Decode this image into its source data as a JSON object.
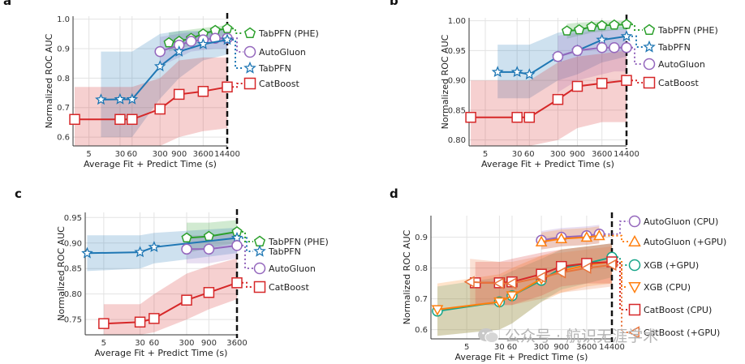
{
  "watermark": "公众号 · 航识无涯学术",
  "chart_data": [
    {
      "panel": "a",
      "type": "line",
      "ylabel": "Normalized ROC AUC",
      "xlabel": "Average Fit + Predict Time (s)",
      "x_ticks": [
        5,
        30,
        60,
        300,
        900,
        3600,
        14400
      ],
      "x_tick_labels": [
        "5",
        "30",
        "60",
        "300",
        "900",
        "3600",
        "14400"
      ],
      "xlim": [
        2,
        14400
      ],
      "ylim": [
        0.57,
        1.01
      ],
      "y_ticks": [
        0.6,
        0.7,
        0.8,
        0.9,
        1.0
      ],
      "y_tick_labels": [
        "0.6",
        "0.7",
        "0.8",
        "0.9",
        "1.0"
      ],
      "grid": true,
      "series": [
        {
          "name": "TabPFN (PHE)",
          "color": "#2ca02c",
          "marker": "pentagon",
          "x": [
            500,
            900,
            1800,
            3600,
            7200,
            14400
          ],
          "y": [
            0.92,
            0.925,
            0.935,
            0.95,
            0.962,
            0.968
          ],
          "lo": [
            0.89,
            0.9,
            0.91,
            0.925,
            0.94,
            0.945
          ],
          "hi": [
            0.955,
            0.96,
            0.965,
            0.97,
            0.975,
            0.98
          ]
        },
        {
          "name": "AutoGluon",
          "color": "#9467bd",
          "marker": "circle",
          "x": [
            300,
            900,
            1800,
            3600,
            7200,
            14400
          ],
          "y": [
            0.89,
            0.912,
            0.925,
            0.93,
            0.935,
            0.935
          ],
          "lo": [
            0.84,
            0.87,
            0.89,
            0.895,
            0.9,
            0.9
          ],
          "hi": [
            0.94,
            0.95,
            0.955,
            0.96,
            0.962,
            0.962
          ]
        },
        {
          "name": "TabPFN",
          "color": "#1f77b4",
          "marker": "star",
          "x": [
            10,
            30,
            60,
            300,
            900,
            3600,
            14400
          ],
          "y": [
            0.727,
            0.728,
            0.728,
            0.84,
            0.89,
            0.915,
            0.93
          ],
          "lo": [
            0.6,
            0.6,
            0.6,
            0.73,
            0.8,
            0.86,
            0.88
          ],
          "hi": [
            0.89,
            0.89,
            0.89,
            0.95,
            0.96,
            0.96,
            0.965
          ]
        },
        {
          "name": "CatBoost",
          "color": "#d62728",
          "marker": "square",
          "x": [
            2.2,
            30,
            60,
            300,
            900,
            3600,
            14400
          ],
          "y": [
            0.66,
            0.66,
            0.66,
            0.695,
            0.745,
            0.755,
            0.77
          ],
          "lo": [
            0.57,
            0.57,
            0.57,
            0.57,
            0.6,
            0.62,
            0.63
          ],
          "hi": [
            0.77,
            0.77,
            0.77,
            0.8,
            0.86,
            0.87,
            0.87
          ]
        }
      ]
    },
    {
      "panel": "b",
      "type": "line",
      "ylabel": "Normalized ROC AUC",
      "xlabel": "Average Fit + Predict Time (s)",
      "x_ticks": [
        5,
        30,
        60,
        300,
        900,
        3600,
        14400
      ],
      "x_tick_labels": [
        "5",
        "30",
        "60",
        "300",
        "900",
        "3600",
        "14400"
      ],
      "xlim": [
        2,
        14400
      ],
      "ylim": [
        0.79,
        1.005
      ],
      "y_ticks": [
        0.8,
        0.85,
        0.9,
        0.95,
        1.0
      ],
      "y_tick_labels": [
        "0.80",
        "0.85",
        "0.90",
        "0.95",
        "1.00"
      ],
      "grid": true,
      "series": [
        {
          "name": "TabPFN (PHE)",
          "color": "#2ca02c",
          "marker": "pentagon",
          "x": [
            500,
            1000,
            2000,
            3600,
            7200,
            14400
          ],
          "y": [
            0.983,
            0.985,
            0.99,
            0.992,
            0.993,
            0.994
          ],
          "lo": [
            0.97,
            0.975,
            0.98,
            0.982,
            0.984,
            0.985
          ],
          "hi": [
            0.995,
            0.997,
            0.998,
            0.999,
            0.999,
            1.0
          ]
        },
        {
          "name": "TabPFN",
          "color": "#1f77b4",
          "marker": "star",
          "x": [
            10,
            30,
            60,
            300,
            900,
            3600,
            14400
          ],
          "y": [
            0.914,
            0.914,
            0.91,
            0.94,
            0.95,
            0.968,
            0.974
          ],
          "lo": [
            0.87,
            0.87,
            0.87,
            0.9,
            0.91,
            0.93,
            0.94
          ],
          "hi": [
            0.96,
            0.96,
            0.96,
            0.98,
            0.985,
            0.99,
            0.99
          ]
        },
        {
          "name": "AutoGluon",
          "color": "#9467bd",
          "marker": "circle",
          "x": [
            300,
            900,
            3600,
            7200,
            14400
          ],
          "y": [
            0.94,
            0.95,
            0.955,
            0.955,
            0.955
          ],
          "lo": [
            0.88,
            0.9,
            0.91,
            0.915,
            0.915
          ],
          "hi": [
            0.975,
            0.98,
            0.985,
            0.985,
            0.985
          ]
        },
        {
          "name": "CatBoost",
          "color": "#d62728",
          "marker": "square",
          "x": [
            2.2,
            30,
            60,
            300,
            900,
            3600,
            14400
          ],
          "y": [
            0.838,
            0.838,
            0.838,
            0.868,
            0.89,
            0.895,
            0.9
          ],
          "lo": [
            0.79,
            0.79,
            0.79,
            0.8,
            0.82,
            0.83,
            0.83
          ],
          "hi": [
            0.9,
            0.9,
            0.9,
            0.93,
            0.94,
            0.945,
            0.95
          ]
        }
      ]
    },
    {
      "panel": "c",
      "type": "line",
      "ylabel": "Normalized ROC AUC",
      "xlabel": "Average Fit + Predict Time (s)",
      "x_ticks": [
        5,
        30,
        60,
        300,
        900,
        3600
      ],
      "x_tick_labels": [
        "5",
        "30",
        "60",
        "300",
        "900",
        "3600"
      ],
      "xlim": [
        2,
        3600
      ],
      "ylim": [
        0.72,
        0.96
      ],
      "y_ticks": [
        0.75,
        0.8,
        0.85,
        0.9,
        0.95
      ],
      "y_tick_labels": [
        "0.75",
        "0.80",
        "0.85",
        "0.90",
        "0.95"
      ],
      "grid": true,
      "series": [
        {
          "name": "TabPFN (PHE)",
          "color": "#2ca02c",
          "marker": "pentagon",
          "x": [
            300,
            900,
            3600
          ],
          "y": [
            0.91,
            0.913,
            0.922
          ],
          "lo": [
            0.88,
            0.89,
            0.9
          ],
          "hi": [
            0.94,
            0.94,
            0.945
          ]
        },
        {
          "name": "TabPFN",
          "color": "#1f77b4",
          "marker": "star",
          "x": [
            2.2,
            30,
            60,
            3600
          ],
          "y": [
            0.88,
            0.882,
            0.892,
            0.91
          ],
          "lo": [
            0.845,
            0.85,
            0.86,
            0.88
          ],
          "hi": [
            0.915,
            0.915,
            0.92,
            0.93
          ]
        },
        {
          "name": "AutoGluon",
          "color": "#9467bd",
          "marker": "circle",
          "x": [
            300,
            900,
            3600
          ],
          "y": [
            0.888,
            0.888,
            0.895
          ],
          "lo": [
            0.86,
            0.86,
            0.87
          ],
          "hi": [
            0.915,
            0.915,
            0.92
          ]
        },
        {
          "name": "CatBoost",
          "color": "#d62728",
          "marker": "square",
          "x": [
            5,
            30,
            60,
            300,
            900,
            3600
          ],
          "y": [
            0.742,
            0.745,
            0.752,
            0.788,
            0.803,
            0.822
          ],
          "lo": [
            0.72,
            0.72,
            0.725,
            0.75,
            0.77,
            0.79
          ],
          "hi": [
            0.78,
            0.78,
            0.8,
            0.84,
            0.855,
            0.87
          ]
        }
      ]
    },
    {
      "panel": "d",
      "type": "line",
      "ylabel": "Normalized ROC AUC",
      "xlabel": "Average Fit + Predict Time (s)",
      "x_ticks": [
        5,
        30,
        60,
        300,
        900,
        3600,
        14400
      ],
      "x_tick_labels": [
        "5",
        "30",
        "60",
        "300",
        "900",
        "3600",
        "14400"
      ],
      "xlim": [
        0.7,
        14400
      ],
      "ylim": [
        0.57,
        0.97
      ],
      "y_ticks": [
        0.6,
        0.7,
        0.8,
        0.9
      ],
      "y_tick_labels": [
        "0.6",
        "0.7",
        "0.8",
        "0.9"
      ],
      "grid": true,
      "series": [
        {
          "name": "AutoGluon (CPU)",
          "color": "#9467bd",
          "marker": "circle",
          "x": [
            300,
            900,
            3600,
            7200
          ],
          "y": [
            0.89,
            0.9,
            0.905,
            0.91
          ],
          "lo": [
            0.86,
            0.87,
            0.875,
            0.88
          ],
          "hi": [
            0.92,
            0.93,
            0.935,
            0.94
          ]
        },
        {
          "name": "AutoGluon (+GPU)",
          "color": "#ff7f0e",
          "marker": "triangle-up",
          "x": [
            300,
            900,
            3600,
            7200
          ],
          "y": [
            0.885,
            0.895,
            0.9,
            0.905
          ],
          "lo": [
            0.86,
            0.87,
            0.875,
            0.88
          ],
          "hi": [
            0.915,
            0.925,
            0.93,
            0.935
          ]
        },
        {
          "name": "XGB (+GPU)",
          "color": "#17a589",
          "marker": "circle",
          "x": [
            1,
            30,
            60,
            300,
            900,
            3600,
            14400
          ],
          "y": [
            0.66,
            0.69,
            0.71,
            0.76,
            0.8,
            0.815,
            0.835
          ],
          "lo": [
            0.58,
            0.6,
            0.62,
            0.69,
            0.73,
            0.75,
            0.77
          ],
          "hi": [
            0.74,
            0.77,
            0.79,
            0.83,
            0.86,
            0.87,
            0.88
          ]
        },
        {
          "name": "XGB (CPU)",
          "color": "#ff7f0e",
          "marker": "triangle-down",
          "x": [
            1,
            30,
            60,
            300,
            900,
            3600,
            14400
          ],
          "y": [
            0.665,
            0.69,
            0.71,
            0.765,
            0.79,
            0.81,
            0.82
          ],
          "lo": [
            0.58,
            0.6,
            0.62,
            0.69,
            0.72,
            0.74,
            0.75
          ],
          "hi": [
            0.75,
            0.78,
            0.8,
            0.84,
            0.86,
            0.87,
            0.88
          ]
        },
        {
          "name": "CatBoost (CPU)",
          "color": "#d62728",
          "marker": "square",
          "x": [
            8,
            30,
            60,
            300,
            900,
            3600,
            14400
          ],
          "y": [
            0.752,
            0.752,
            0.755,
            0.78,
            0.805,
            0.815,
            0.82
          ],
          "lo": [
            0.68,
            0.68,
            0.68,
            0.71,
            0.74,
            0.75,
            0.75
          ],
          "hi": [
            0.82,
            0.82,
            0.83,
            0.85,
            0.86,
            0.87,
            0.88
          ]
        },
        {
          "name": "CatBoost (+GPU)",
          "color": "#e8743b",
          "marker": "triangle-left",
          "x": [
            6,
            30,
            60,
            300,
            900,
            3600,
            14400
          ],
          "y": [
            0.755,
            0.75,
            0.75,
            0.77,
            0.785,
            0.8,
            0.81
          ],
          "lo": [
            0.68,
            0.68,
            0.68,
            0.7,
            0.72,
            0.73,
            0.74
          ],
          "hi": [
            0.83,
            0.82,
            0.82,
            0.84,
            0.85,
            0.86,
            0.87
          ]
        }
      ]
    }
  ]
}
